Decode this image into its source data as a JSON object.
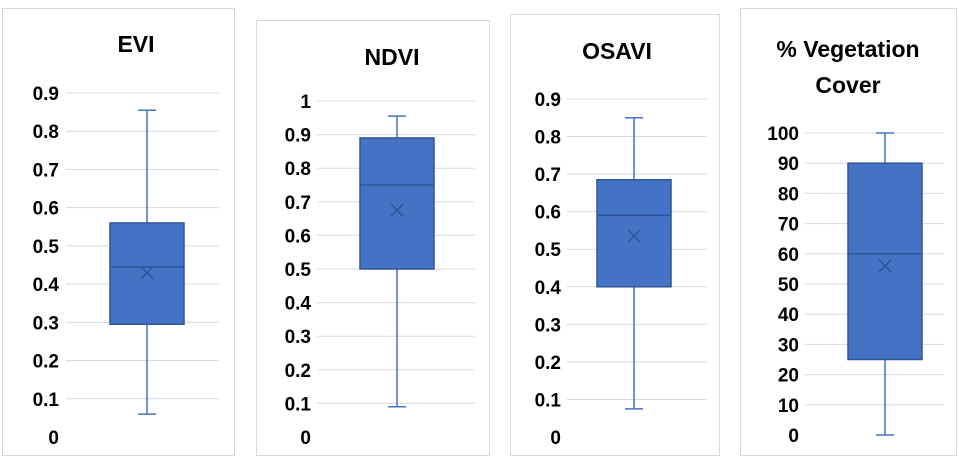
{
  "colors": {
    "box_fill": "#4472C4",
    "box_stroke": "#2F5597",
    "gridline": "#d9d9d9",
    "text": "#000000"
  },
  "chart_data": [
    {
      "type": "box",
      "title": [
        "EVI"
      ],
      "ylim": [
        0,
        0.9
      ],
      "yticks": [
        "0",
        "0.1",
        "0.2",
        "0.3",
        "0.4",
        "0.5",
        "0.6",
        "0.7",
        "0.8",
        "0.9"
      ],
      "box": {
        "min": 0.06,
        "q1": 0.295,
        "median": 0.445,
        "mean": 0.43,
        "q3": 0.56,
        "max": 0.855
      }
    },
    {
      "type": "box",
      "title": [
        "NDVI"
      ],
      "ylim": [
        0,
        1
      ],
      "yticks": [
        "0",
        "0.1",
        "0.2",
        "0.3",
        "0.4",
        "0.5",
        "0.6",
        "0.7",
        "0.8",
        "0.9",
        "1"
      ],
      "box": {
        "min": 0.09,
        "q1": 0.5,
        "median": 0.75,
        "mean": 0.675,
        "q3": 0.89,
        "max": 0.955
      }
    },
    {
      "type": "box",
      "title": [
        "OSAVI"
      ],
      "ylim": [
        0,
        0.9
      ],
      "yticks": [
        "0",
        "0.1",
        "0.2",
        "0.3",
        "0.4",
        "0.5",
        "0.6",
        "0.7",
        "0.8",
        "0.9"
      ],
      "box": {
        "min": 0.075,
        "q1": 0.4,
        "median": 0.59,
        "mean": 0.535,
        "q3": 0.685,
        "max": 0.85
      }
    },
    {
      "type": "box",
      "title": [
        "% Vegetation",
        "Cover"
      ],
      "ylim": [
        0,
        100
      ],
      "yticks": [
        "0",
        "10",
        "20",
        "30",
        "40",
        "50",
        "60",
        "70",
        "80",
        "90",
        "100"
      ],
      "box": {
        "min": 0,
        "q1": 25,
        "median": 60,
        "mean": 56,
        "q3": 90,
        "max": 100
      }
    }
  ]
}
